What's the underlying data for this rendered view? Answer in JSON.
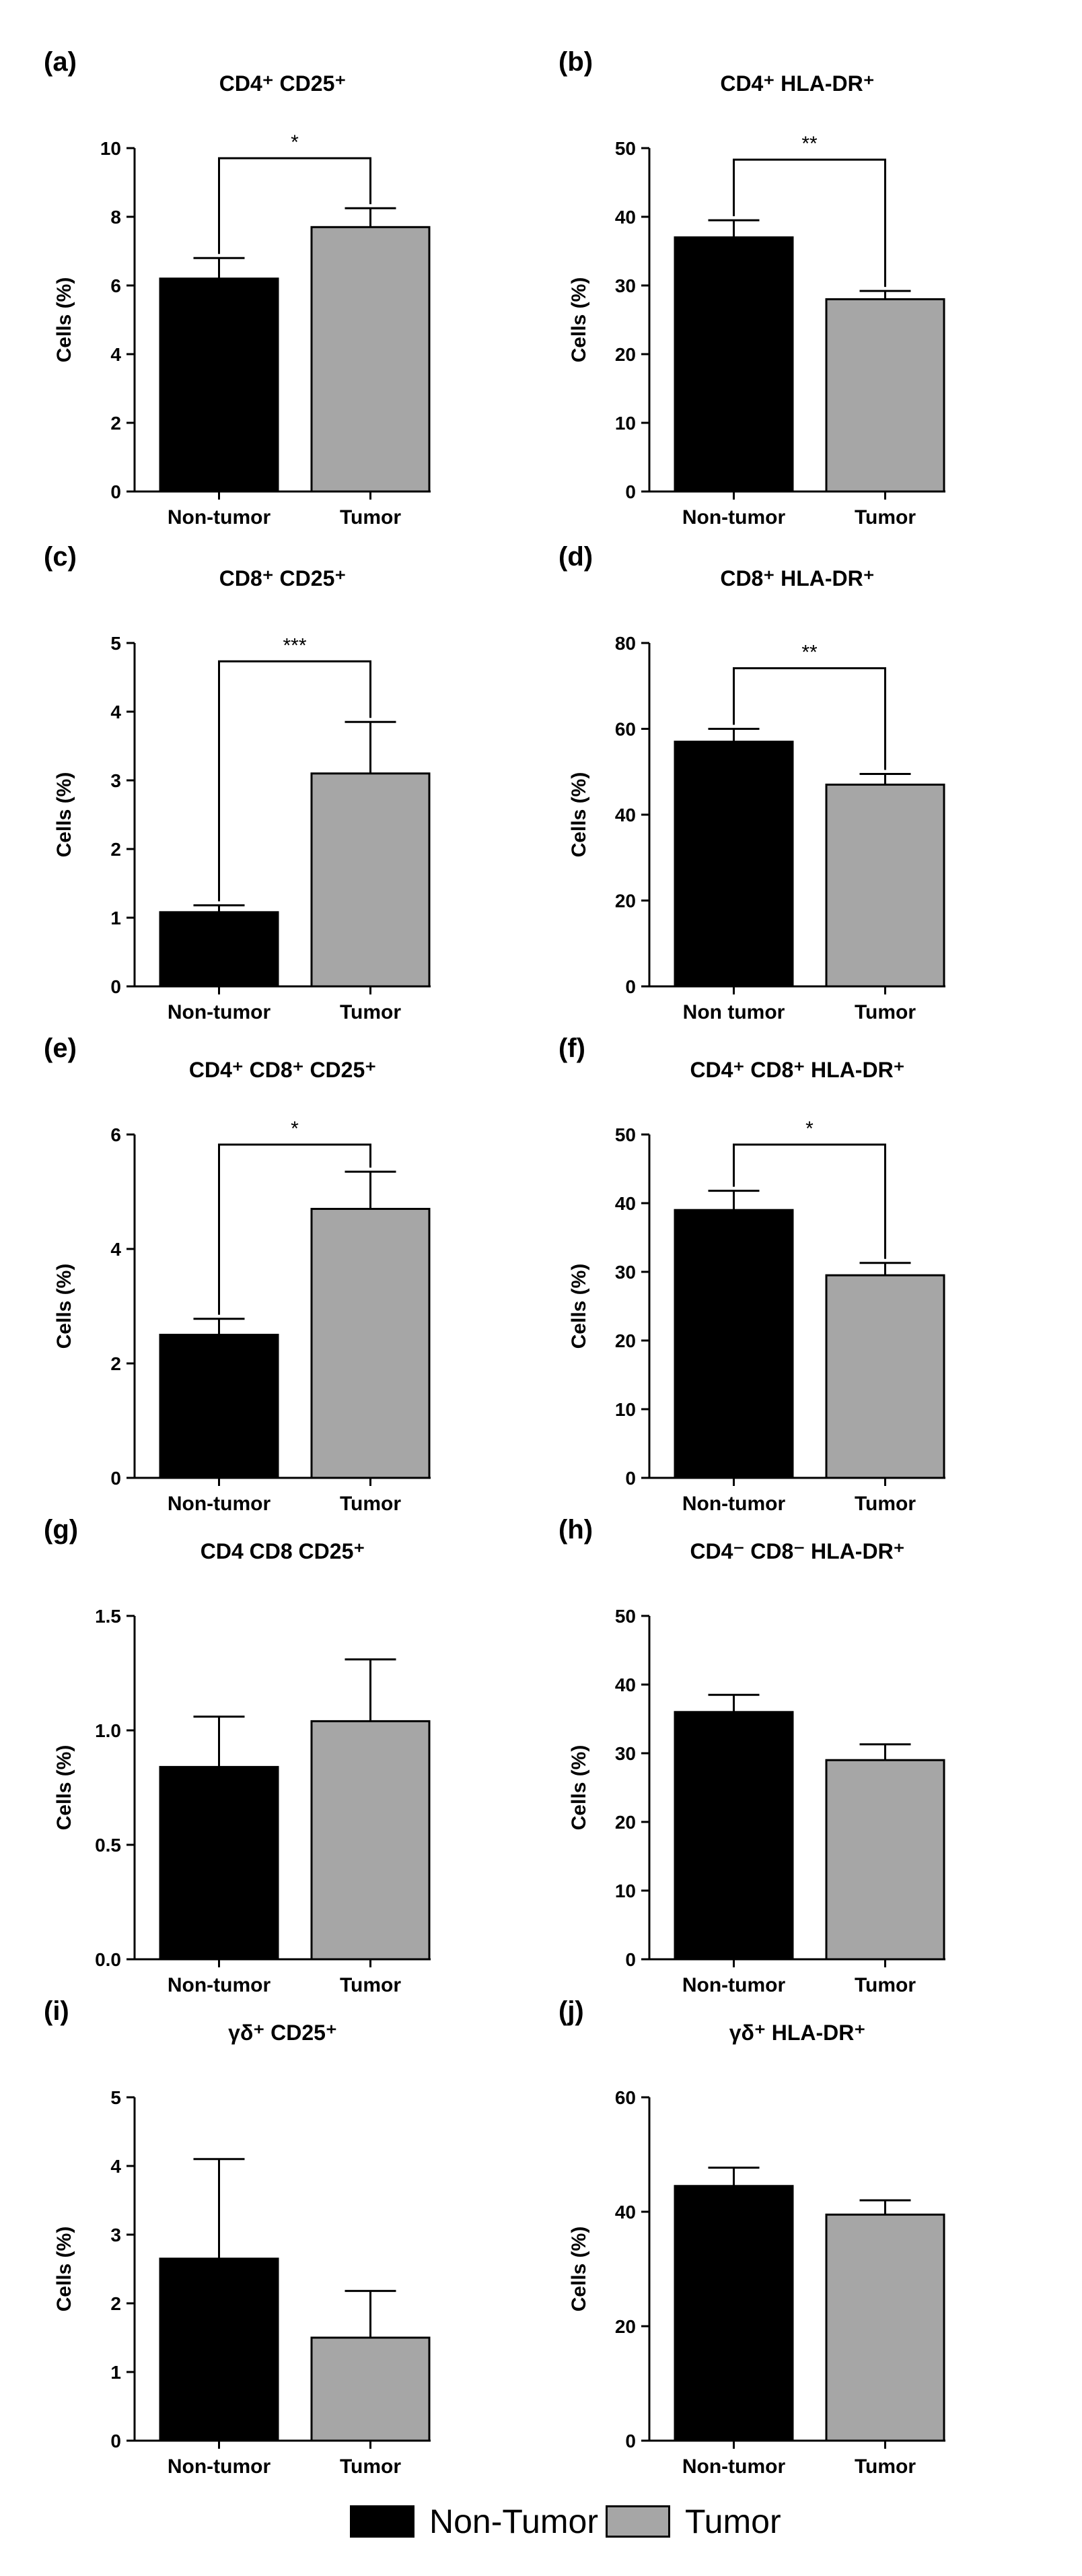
{
  "legend": {
    "items": [
      {
        "label": "Non-Tumor",
        "color": "#000000"
      },
      {
        "label": "Tumor",
        "color": "#a6a6a6"
      }
    ]
  },
  "chart_data": [
    {
      "panel": "(a)",
      "type": "bar",
      "title": "CD4⁺ CD25⁺",
      "ylabel": "Cells (%)",
      "categories": [
        "Non-tumor",
        "Tumor"
      ],
      "values": [
        6.2,
        7.7
      ],
      "errors": [
        0.6,
        0.55
      ],
      "ylim": [
        0,
        10
      ],
      "yticks": [
        "0",
        "2",
        "4",
        "6",
        "8",
        "10"
      ],
      "significance": "*"
    },
    {
      "panel": "(b)",
      "type": "bar",
      "title": "CD4⁺ HLA-DR⁺",
      "ylabel": "Cells (%)",
      "categories": [
        "Non-tumor",
        "Tumor"
      ],
      "values": [
        37,
        28
      ],
      "errors": [
        2.5,
        1.2
      ],
      "ylim": [
        0,
        50
      ],
      "yticks": [
        "0",
        "10",
        "20",
        "30",
        "40",
        "50"
      ],
      "significance": "**"
    },
    {
      "panel": "(c)",
      "type": "bar",
      "title": "CD8⁺ CD25⁺",
      "ylabel": "Cells (%)",
      "categories": [
        "Non-tumor",
        "Tumor"
      ],
      "values": [
        1.08,
        3.1
      ],
      "errors": [
        0.1,
        0.75
      ],
      "ylim": [
        0,
        5
      ],
      "yticks": [
        "0",
        "1",
        "2",
        "3",
        "4",
        "5"
      ],
      "significance": "***"
    },
    {
      "panel": "(d)",
      "type": "bar",
      "title": "CD8⁺ HLA-DR⁺",
      "ylabel": "Cells (%)",
      "categories": [
        "Non tumor",
        "Tumor"
      ],
      "values": [
        57,
        47
      ],
      "errors": [
        3,
        2.5
      ],
      "ylim": [
        0,
        80
      ],
      "yticks": [
        "0",
        "20",
        "40",
        "60",
        "80"
      ],
      "significance": "**"
    },
    {
      "panel": "(e)",
      "type": "bar",
      "title": "CD4⁺ CD8⁺ CD25⁺",
      "ylabel": "Cells (%)",
      "categories": [
        "Non-tumor",
        "Tumor"
      ],
      "values": [
        2.5,
        4.7
      ],
      "errors": [
        0.28,
        0.65
      ],
      "ylim": [
        0,
        6
      ],
      "yticks": [
        "0",
        "2",
        "4",
        "6"
      ],
      "significance": "*"
    },
    {
      "panel": "(f)",
      "type": "bar",
      "title": "CD4⁺ CD8⁺ HLA-DR⁺",
      "ylabel": "Cells (%)",
      "categories": [
        "Non-tumor",
        "Tumor"
      ],
      "values": [
        39,
        29.5
      ],
      "errors": [
        2.8,
        1.8
      ],
      "ylim": [
        0,
        50
      ],
      "yticks": [
        "0",
        "10",
        "20",
        "30",
        "40",
        "50"
      ],
      "significance": "*"
    },
    {
      "panel": "(g)",
      "type": "bar",
      "title": "CD4 CD8 CD25⁺",
      "ylabel": "Cells (%)",
      "categories": [
        "Non-tumor",
        "Tumor"
      ],
      "values": [
        0.84,
        1.04
      ],
      "errors": [
        0.22,
        0.27
      ],
      "ylim": [
        0,
        1.5
      ],
      "yticks": [
        "0.0",
        "0.5",
        "1.0",
        "1.5"
      ],
      "significance": ""
    },
    {
      "panel": "(h)",
      "type": "bar",
      "title": "CD4⁻ CD8⁻ HLA-DR⁺",
      "ylabel": "Cells (%)",
      "categories": [
        "Non-tumor",
        "Tumor"
      ],
      "values": [
        36,
        29
      ],
      "errors": [
        2.5,
        2.3
      ],
      "ylim": [
        0,
        50
      ],
      "yticks": [
        "0",
        "10",
        "20",
        "30",
        "40",
        "50"
      ],
      "significance": ""
    },
    {
      "panel": "(i)",
      "type": "bar",
      "title": "γδ⁺ CD25⁺",
      "ylabel": "Cells (%)",
      "categories": [
        "Non-tumor",
        "Tumor"
      ],
      "values": [
        2.65,
        1.5
      ],
      "errors": [
        1.45,
        0.68
      ],
      "ylim": [
        0,
        5
      ],
      "yticks": [
        "0",
        "1",
        "2",
        "3",
        "4",
        "5"
      ],
      "significance": ""
    },
    {
      "panel": "(j)",
      "type": "bar",
      "title": "γδ⁺ HLA-DR⁺",
      "ylabel": "Cells (%)",
      "categories": [
        "Non-tumor",
        "Tumor"
      ],
      "values": [
        44.5,
        39.5
      ],
      "errors": [
        3.2,
        2.5
      ],
      "ylim": [
        0,
        60
      ],
      "yticks": [
        "0",
        "20",
        "40",
        "60"
      ],
      "significance": ""
    }
  ]
}
